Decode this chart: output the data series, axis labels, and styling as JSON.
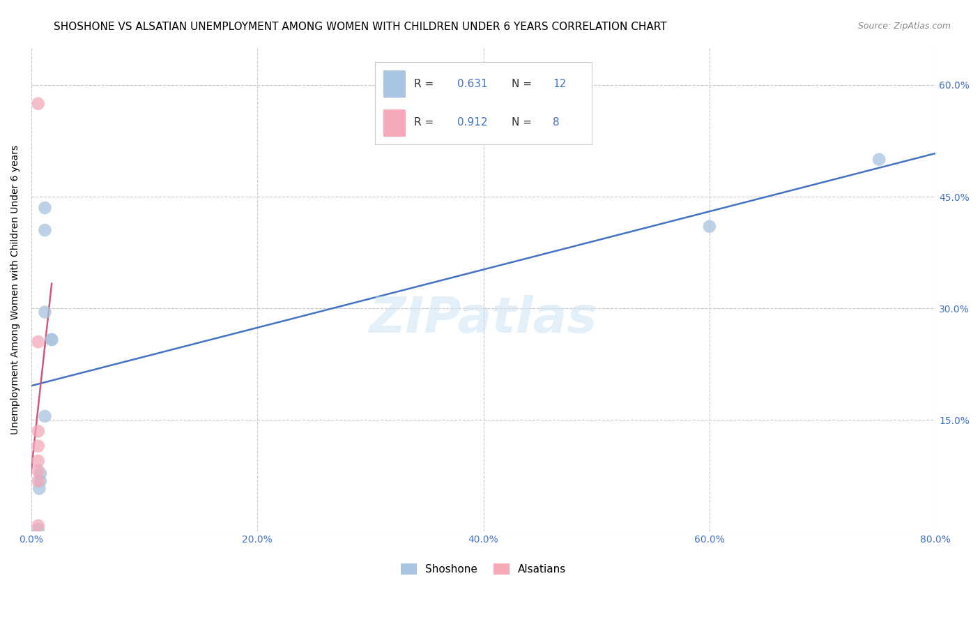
{
  "title": "SHOSHONE VS ALSATIAN UNEMPLOYMENT AMONG WOMEN WITH CHILDREN UNDER 6 YEARS CORRELATION CHART",
  "source": "Source: ZipAtlas.com",
  "ylabel": "Unemployment Among Women with Children Under 6 years",
  "xlim": [
    0,
    0.8
  ],
  "ylim": [
    0,
    0.65
  ],
  "yticks": [
    0.0,
    0.15,
    0.3,
    0.45,
    0.6
  ],
  "xticks": [
    0.0,
    0.2,
    0.4,
    0.6,
    0.8
  ],
  "xtick_labels": [
    "0.0%",
    "20.0%",
    "40.0%",
    "60.0%",
    "80.0%"
  ],
  "ytick_labels_right": [
    "",
    "15.0%",
    "30.0%",
    "45.0%",
    "60.0%"
  ],
  "shoshone_x": [
    0.012,
    0.012,
    0.012,
    0.018,
    0.018,
    0.012,
    0.008,
    0.008,
    0.007,
    0.006,
    0.6,
    0.75
  ],
  "shoshone_y": [
    0.435,
    0.405,
    0.295,
    0.258,
    0.258,
    0.155,
    0.078,
    0.068,
    0.058,
    0.003,
    0.41,
    0.5
  ],
  "alsatian_x": [
    0.006,
    0.006,
    0.006,
    0.006,
    0.006,
    0.006,
    0.006,
    0.006
  ],
  "alsatian_y": [
    0.575,
    0.255,
    0.135,
    0.115,
    0.095,
    0.082,
    0.068,
    0.008
  ],
  "shoshone_R": 0.631,
  "shoshone_N": 12,
  "alsatian_R": 0.912,
  "alsatian_N": 8,
  "shoshone_color": "#a8c4e0",
  "alsatian_color": "#f4a8b8",
  "shoshone_line_color": "#4472c4",
  "alsatian_line_color": "#d05878",
  "marker_size": 180,
  "background_color": "#ffffff",
  "grid_color": "#c8c8c8",
  "title_fontsize": 11,
  "axis_label_fontsize": 10,
  "tick_fontsize": 10,
  "tick_color": "#4472c4"
}
